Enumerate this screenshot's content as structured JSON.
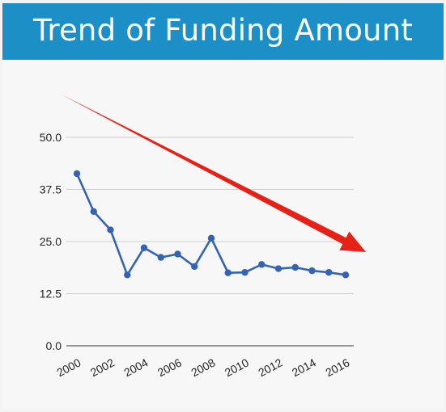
{
  "header": {
    "title": "Trend of Funding Amount"
  },
  "colors": {
    "header_bg": "#1d8fc7",
    "series_line": "#3463b4",
    "trend_arrow": "#e62118",
    "gridline": "#cfcfcf"
  },
  "chart_data": {
    "type": "line",
    "title": "Trend of Funding Amount",
    "xlabel": "",
    "ylabel": "",
    "ylim": [
      0,
      50
    ],
    "yticks": [
      0,
      12.5,
      25,
      37.5,
      50
    ],
    "ytick_labels": [
      "0.0",
      "12.5",
      "25.0",
      "37.5",
      "50.0"
    ],
    "xlim": [
      2000,
      2016
    ],
    "xticks": [
      2000,
      2002,
      2004,
      2006,
      2008,
      2010,
      2012,
      2014,
      2016
    ],
    "xtick_labels": [
      "2000",
      "2002",
      "2004",
      "2006",
      "2008",
      "2010",
      "2012",
      "2014",
      "2016"
    ],
    "grid": true,
    "legend": "none",
    "series": [
      {
        "x": [
          2000,
          2001,
          2002,
          2003,
          2004,
          2005,
          2006,
          2007,
          2008,
          2009,
          2010,
          2011,
          2012,
          2013,
          2014,
          2015,
          2016
        ],
        "values": [
          41.3,
          32.2,
          27.8,
          17.0,
          23.5,
          21.2,
          22.0,
          19.0,
          25.8,
          17.5,
          17.6,
          19.5,
          18.5,
          18.8,
          18.0,
          17.6,
          17.0
        ]
      }
    ],
    "annotations": [
      {
        "type": "arrow",
        "meaning": "downward trend"
      }
    ]
  }
}
